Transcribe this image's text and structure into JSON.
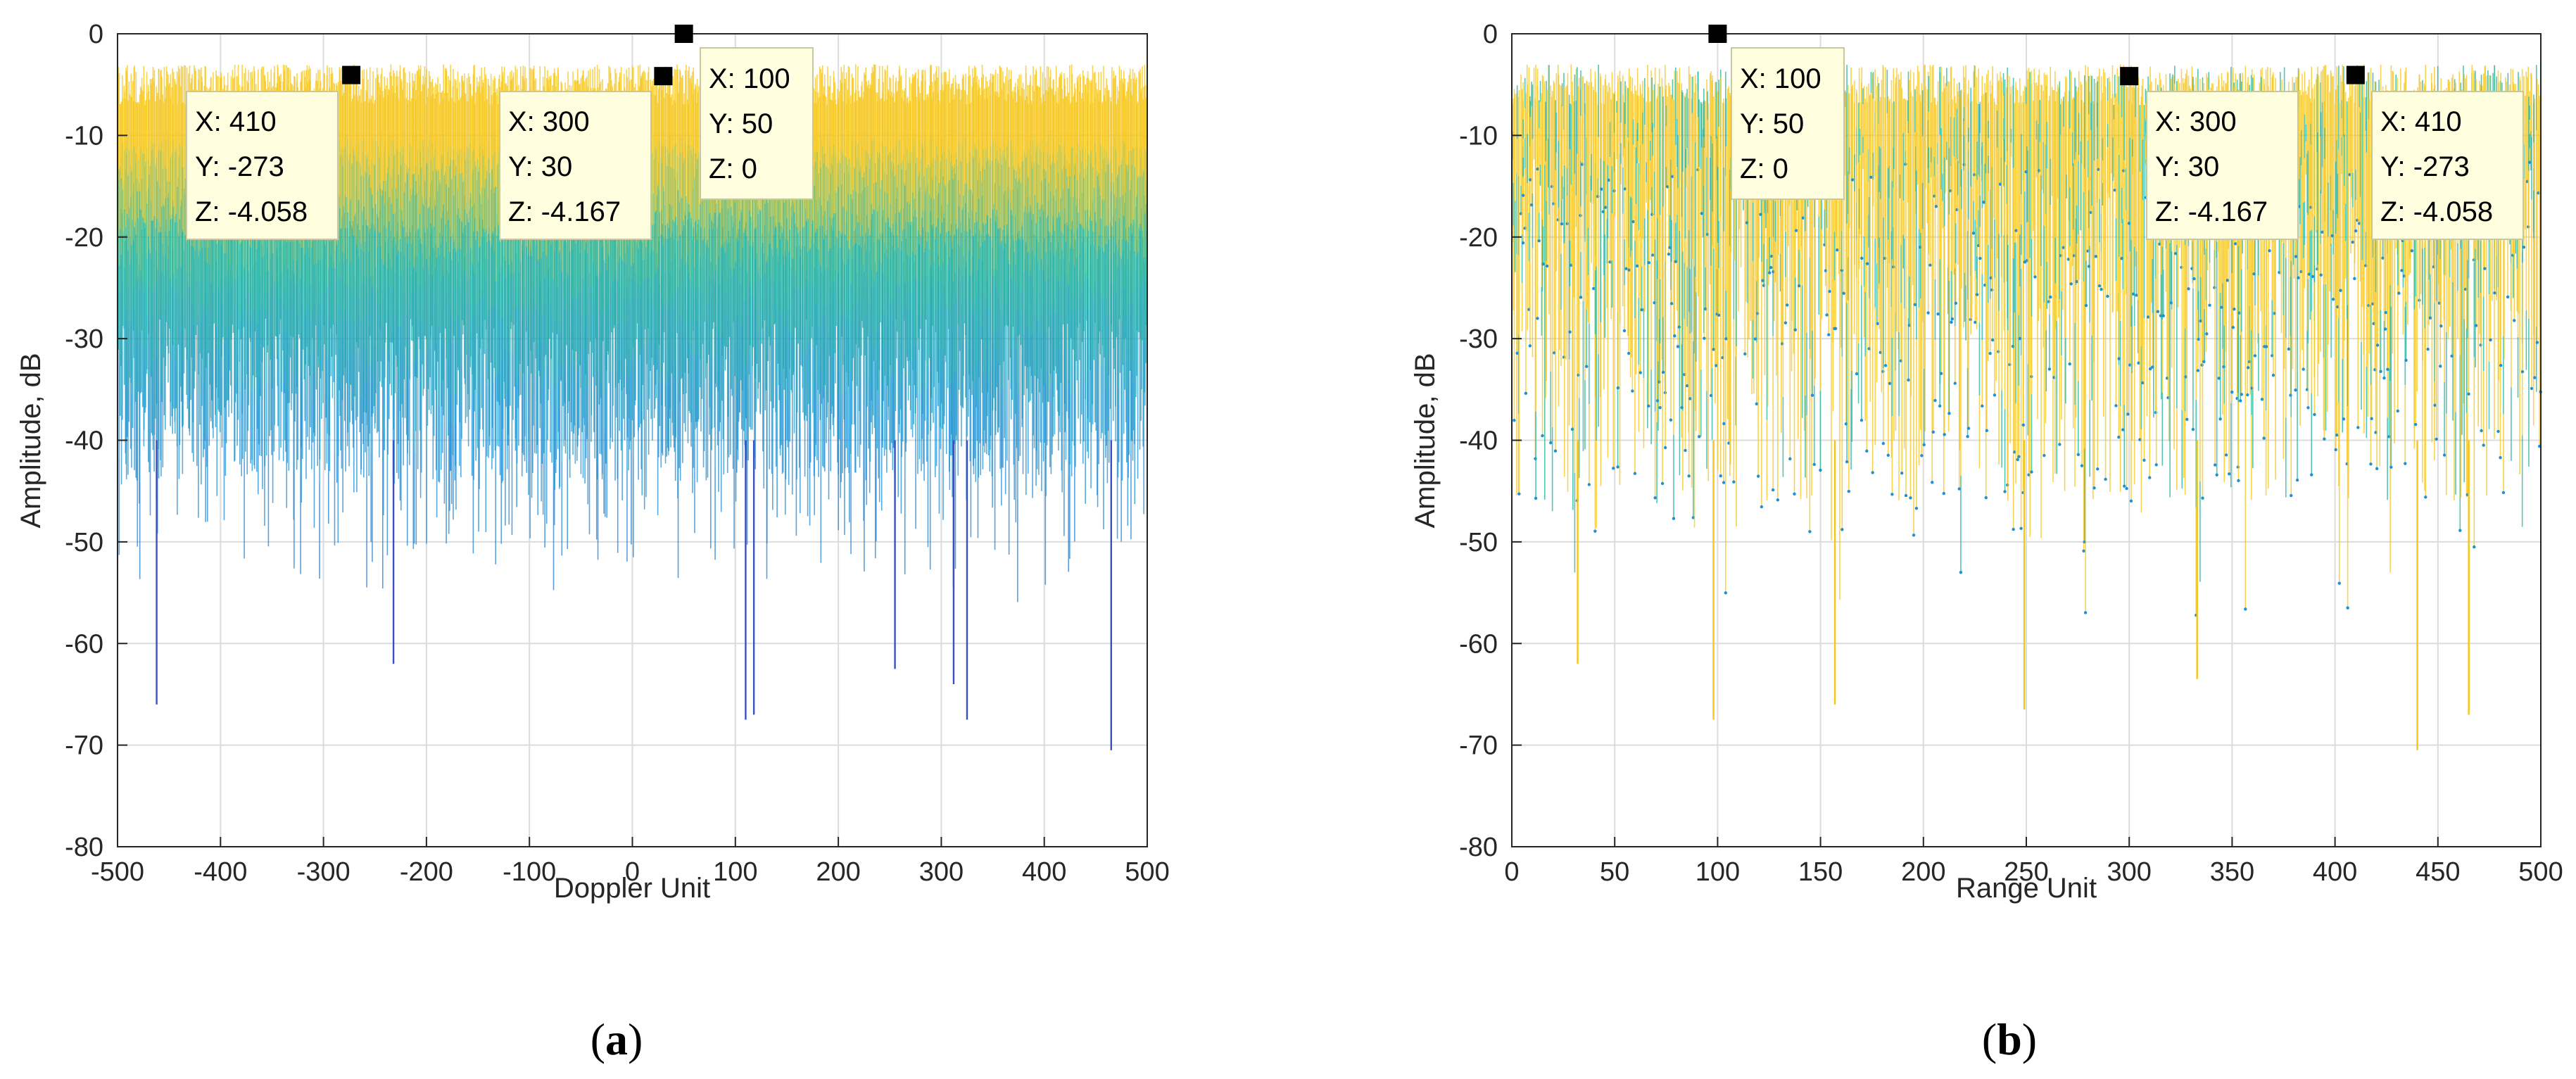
{
  "colors": {
    "high": "#f5c518",
    "mid": "#1fb29a",
    "low": "#1e90d8",
    "deep": "#3a4fc0",
    "grid": "#dcdcdc",
    "axis": "#262626",
    "tip_bg": "#ffffe0",
    "marker": "#000000"
  },
  "chart_data": [
    {
      "id": "a",
      "type": "line",
      "caption_open": "(",
      "caption_letter": "a",
      "caption_close": ")",
      "xlabel": "Doppler Unit",
      "ylabel": "Amplitude,  dB",
      "xlim": [
        -500,
        500
      ],
      "ylim": [
        -80,
        0
      ],
      "xticks": [
        -500,
        -400,
        -300,
        -200,
        -100,
        0,
        100,
        200,
        300,
        400,
        500
      ],
      "yticks": [
        0,
        -10,
        -20,
        -30,
        -40,
        -50,
        -60,
        -70,
        -80
      ],
      "grid": true,
      "noise_floor_db": [
        -45,
        -3
      ],
      "markers": [
        {
          "x": -273,
          "y": -4.058
        },
        {
          "x": 30,
          "y": -4.167
        },
        {
          "x": 50,
          "y": 0
        }
      ],
      "datatips": [
        {
          "X": "X: 410",
          "Y": "Y: -273",
          "Z": "Z: -4.058"
        },
        {
          "X": "X: 300",
          "Y": "Y: 30",
          "Z": "Z: -4.167"
        },
        {
          "X": "X: 100",
          "Y": "Y: 50",
          "Z": "Z: 0"
        }
      ],
      "deep_spikes": [
        {
          "x": -462,
          "y": -66
        },
        {
          "x": 110,
          "y": -67.5
        },
        {
          "x": 118,
          "y": -67
        },
        {
          "x": 312,
          "y": -64
        },
        {
          "x": 325,
          "y": -67.5
        },
        {
          "x": 465,
          "y": -70.5
        },
        {
          "x": -232,
          "y": -62
        },
        {
          "x": 255,
          "y": -62.5
        }
      ]
    },
    {
      "id": "b",
      "type": "line",
      "caption_open": "(",
      "caption_letter": "b",
      "caption_close": ")",
      "xlabel": "Range Unit",
      "ylabel": "Amplitude,  dB",
      "xlim": [
        0,
        500
      ],
      "ylim": [
        -80,
        0
      ],
      "xticks": [
        0,
        50,
        100,
        150,
        200,
        250,
        300,
        350,
        400,
        450,
        500
      ],
      "yticks": [
        0,
        -10,
        -20,
        -30,
        -40,
        -50,
        -60,
        -70,
        -80
      ],
      "grid": true,
      "noise_floor_db": [
        -45,
        -3
      ],
      "markers": [
        {
          "x": 100,
          "y": 0
        },
        {
          "x": 300,
          "y": -4.167
        },
        {
          "x": 410,
          "y": -4.058
        }
      ],
      "datatips": [
        {
          "X": "X: 100",
          "Y": "Y: 50",
          "Z": "Z: 0"
        },
        {
          "X": "X: 300",
          "Y": "Y: 30",
          "Z": "Z: -4.167"
        },
        {
          "X": "X: 410",
          "Y": "Y: -273",
          "Z": "Z: -4.058"
        }
      ],
      "deep_spikes": [
        {
          "x": 32,
          "y": -62
        },
        {
          "x": 98,
          "y": -67.5
        },
        {
          "x": 157,
          "y": -66
        },
        {
          "x": 249,
          "y": -66.5
        },
        {
          "x": 333,
          "y": -63.5
        },
        {
          "x": 440,
          "y": -70.5
        },
        {
          "x": 465,
          "y": -67
        }
      ]
    }
  ]
}
